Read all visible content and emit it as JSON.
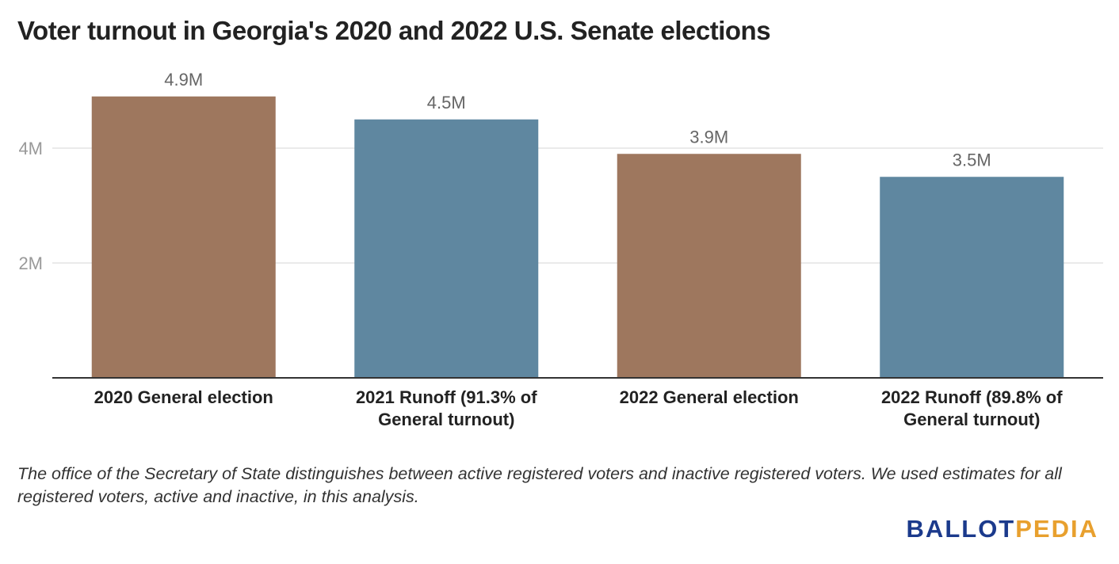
{
  "title": "Voter turnout in Georgia's 2020 and 2022 U.S. Senate elections",
  "note": "The office of the Secretary of State distinguishes between active registered voters and inactive registered voters. We used estimates for all registered voters, active and inactive, in this analysis.",
  "brand": {
    "part1": "BALLOT",
    "part2": "PEDIA"
  },
  "colors": {
    "brown": "#9e775e",
    "blue": "#5f87a0",
    "grid": "#e3e3e3",
    "axis": "#333333",
    "ticktext": "#999999",
    "labeltext": "#666666"
  },
  "chart_data": {
    "type": "bar",
    "title": "Voter turnout in Georgia's 2020 and 2022 U.S. Senate elections",
    "xlabel": "",
    "ylabel": "",
    "categories": [
      [
        "2020 General election"
      ],
      [
        "2021 Runoff (91.3% of",
        "General turnout)"
      ],
      [
        "2022 General election"
      ],
      [
        "2022 Runoff (89.8% of",
        "General turnout)"
      ]
    ],
    "values": [
      4.9,
      4.5,
      3.9,
      3.5
    ],
    "value_labels": [
      "4.9M",
      "4.5M",
      "3.9M",
      "3.5M"
    ],
    "bar_colors": [
      "#9e775e",
      "#5f87a0",
      "#9e775e",
      "#5f87a0"
    ],
    "yticks": [
      2,
      4
    ],
    "ytick_labels": [
      "2M",
      "4M"
    ],
    "ylim": [
      0,
      5
    ],
    "grid": true,
    "legend": "none"
  }
}
